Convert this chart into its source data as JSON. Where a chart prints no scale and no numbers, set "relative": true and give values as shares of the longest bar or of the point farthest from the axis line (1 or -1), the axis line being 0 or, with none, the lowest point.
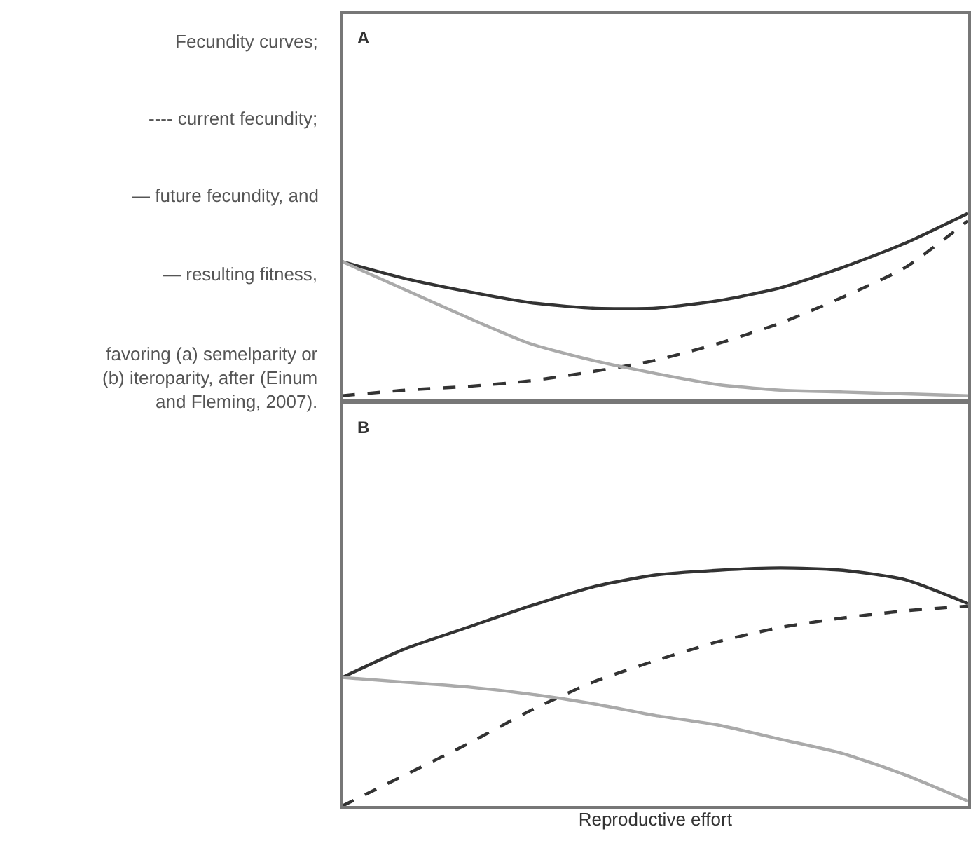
{
  "chart_data": [
    {
      "type": "line",
      "title": "A",
      "relative": true,
      "tick_labels": false,
      "categories": [
        null,
        null,
        null,
        null,
        null,
        null,
        null,
        null,
        null,
        null,
        null
      ],
      "annotations": [
        "Fecundity curves;",
        "---- current fecundity;",
        "— future fecundity, and",
        "— resulting fitness,",
        "favoring (a) semelparity or (b) iteroparity, after (Einum and Fleming, 2007)."
      ],
      "series": [
        {
          "color": "#333333",
          "line_style": "solid",
          "values": [
            0.74,
            0.65,
            0.58,
            0.52,
            0.49,
            0.49,
            0.53,
            0.6,
            0.71,
            0.84,
            1
          ]
        },
        {
          "color": "#333333",
          "line_style": "dashed",
          "values": [
            0.02,
            0.05,
            0.07,
            0.1,
            0.15,
            0.21,
            0.3,
            0.41,
            0.55,
            0.71,
            0.96
          ]
        },
        {
          "color": "#aaaaaa",
          "line_style": "solid",
          "values": [
            0.74,
            0.59,
            0.44,
            0.3,
            0.21,
            0.14,
            0.08,
            0.05,
            0.04,
            0.03,
            0.02
          ]
        }
      ]
    },
    {
      "type": "line",
      "title": "B",
      "xlabel": "Reproductive effort",
      "relative": true,
      "tick_labels": false,
      "categories": [
        null,
        null,
        null,
        null,
        null,
        null,
        null,
        null,
        null,
        null,
        null
      ],
      "series": [
        {
          "color": "#333333",
          "line_style": "solid",
          "values": [
            0.54,
            0.66,
            0.75,
            0.84,
            0.92,
            0.97,
            0.99,
            1,
            0.99,
            0.95,
            0.85
          ]
        },
        {
          "color": "#333333",
          "line_style": "dashed",
          "values": [
            0,
            0.13,
            0.26,
            0.4,
            0.52,
            0.61,
            0.69,
            0.75,
            0.79,
            0.82,
            0.84
          ]
        },
        {
          "color": "#aaaaaa",
          "line_style": "solid",
          "values": [
            0.54,
            0.52,
            0.5,
            0.47,
            0.43,
            0.38,
            0.34,
            0.28,
            0.22,
            0.13,
            0.02
          ]
        }
      ]
    }
  ]
}
